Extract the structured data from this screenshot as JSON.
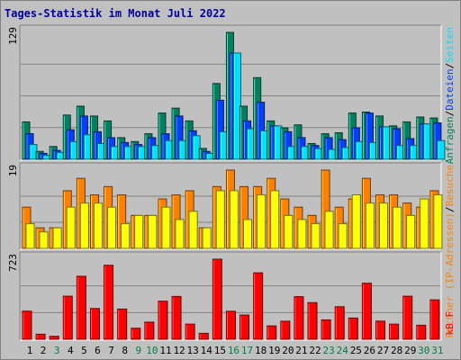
{
  "title": "Tages-Statistik im Monat Juli 2022",
  "colors": {
    "background": "#c0c0c0",
    "title": "#0000a0",
    "hits": "#008060",
    "files": "#0040ff",
    "pages": "#00e0ff",
    "visits": "#ff8000",
    "sites": "#ffff00",
    "kbytes": "#ff0000",
    "weekday_label": "#000000",
    "weekend_label": "#008040",
    "grid": "#808080"
  },
  "chart_data": [
    {
      "type": "bar",
      "panel": "top",
      "ymax_label": "129",
      "ylim": [
        0,
        129
      ],
      "categories": [
        "1",
        "2",
        "3",
        "4",
        "5",
        "6",
        "7",
        "8",
        "9",
        "10",
        "11",
        "12",
        "13",
        "14",
        "15",
        "16",
        "17",
        "18",
        "19",
        "20",
        "21",
        "22",
        "23",
        "24",
        "25",
        "26",
        "27",
        "28",
        "29",
        "30",
        "31"
      ],
      "right_labels": [
        "Anfragen",
        "/",
        "Dateien",
        "/",
        "Seiten"
      ],
      "series": [
        {
          "name": "Anfragen",
          "color": "#008060",
          "values": [
            38,
            8,
            13,
            45,
            54,
            44,
            39,
            22,
            18,
            26,
            47,
            52,
            39,
            11,
            77,
            129,
            54,
            83,
            39,
            32,
            35,
            16,
            26,
            27,
            47,
            48,
            44,
            34,
            38,
            43,
            42
          ]
        },
        {
          "name": "Dateien",
          "color": "#0040ff",
          "values": [
            26,
            6,
            9,
            30,
            44,
            28,
            22,
            17,
            15,
            22,
            26,
            44,
            29,
            8,
            60,
            108,
            39,
            58,
            34,
            28,
            22,
            14,
            22,
            20,
            32,
            47,
            33,
            31,
            21,
            36,
            37
          ]
        },
        {
          "name": "Seiten",
          "color": "#00e0ff",
          "values": [
            15,
            4,
            7,
            18,
            25,
            16,
            13,
            13,
            13,
            14,
            19,
            19,
            24,
            6,
            28,
            108,
            31,
            29,
            34,
            13,
            13,
            11,
            10,
            12,
            18,
            17,
            33,
            14,
            14,
            36,
            19
          ]
        }
      ]
    },
    {
      "type": "bar",
      "panel": "middle",
      "ymax_label": "19",
      "ylim": [
        0,
        19
      ],
      "categories": [
        "1",
        "2",
        "3",
        "4",
        "5",
        "6",
        "7",
        "8",
        "9",
        "10",
        "11",
        "12",
        "13",
        "14",
        "15",
        "16",
        "17",
        "18",
        "19",
        "20",
        "21",
        "22",
        "23",
        "24",
        "25",
        "26",
        "27",
        "28",
        "29",
        "30",
        "31"
      ],
      "right_labels": [
        "Rechner (IP-Adressen)",
        "/",
        "Besuche"
      ],
      "series": [
        {
          "name": "Besuche",
          "color": "#ff8000",
          "values": [
            10,
            5,
            5,
            14,
            17,
            13,
            15,
            13,
            8,
            8,
            12,
            13,
            14,
            5,
            15,
            19,
            15,
            15,
            17,
            12,
            10,
            8,
            19,
            10,
            12,
            17,
            13,
            13,
            11,
            10,
            14
          ]
        },
        {
          "name": "Rechner (IP-Adressen)",
          "color": "#ffff00",
          "values": [
            6,
            4,
            5,
            10,
            11,
            11,
            10,
            6,
            8,
            8,
            10,
            7,
            9,
            5,
            14,
            14,
            7,
            13,
            14,
            8,
            7,
            6,
            9,
            6,
            13,
            11,
            11,
            10,
            8,
            12,
            13
          ]
        }
      ]
    },
    {
      "type": "bar",
      "panel": "bottom",
      "ymax_label": "723",
      "ylim": [
        0,
        723
      ],
      "categories": [
        "1",
        "2",
        "3",
        "4",
        "5",
        "6",
        "7",
        "8",
        "9",
        "10",
        "11",
        "12",
        "13",
        "14",
        "15",
        "16",
        "17",
        "18",
        "19",
        "20",
        "21",
        "22",
        "23",
        "24",
        "25",
        "26",
        "27",
        "28",
        "29",
        "30",
        "31"
      ],
      "right_labels": [
        "kB F"
      ],
      "series": [
        {
          "name": "kB F",
          "color": "#ff0000",
          "values": [
            254,
            46,
            27,
            389,
            569,
            278,
            668,
            273,
            100,
            155,
            344,
            387,
            137,
            54,
            723,
            253,
            219,
            600,
            121,
            163,
            385,
            331,
            175,
            294,
            192,
            506,
            164,
            137,
            389,
            127,
            356
          ]
        }
      ]
    }
  ],
  "x_labels": [
    {
      "label": "1",
      "weekend": false
    },
    {
      "label": "2",
      "weekend": false
    },
    {
      "label": "3",
      "weekend": true
    },
    {
      "label": "4",
      "weekend": false
    },
    {
      "label": "5",
      "weekend": false
    },
    {
      "label": "6",
      "weekend": false
    },
    {
      "label": "7",
      "weekend": false
    },
    {
      "label": "8",
      "weekend": false
    },
    {
      "label": "9",
      "weekend": true
    },
    {
      "label": "10",
      "weekend": true
    },
    {
      "label": "11",
      "weekend": false
    },
    {
      "label": "12",
      "weekend": false
    },
    {
      "label": "13",
      "weekend": false
    },
    {
      "label": "14",
      "weekend": false
    },
    {
      "label": "15",
      "weekend": false
    },
    {
      "label": "16",
      "weekend": true
    },
    {
      "label": "17",
      "weekend": true
    },
    {
      "label": "18",
      "weekend": false
    },
    {
      "label": "19",
      "weekend": false
    },
    {
      "label": "20",
      "weekend": false
    },
    {
      "label": "21",
      "weekend": false
    },
    {
      "label": "22",
      "weekend": false
    },
    {
      "label": "23",
      "weekend": true
    },
    {
      "label": "24",
      "weekend": true
    },
    {
      "label": "25",
      "weekend": false
    },
    {
      "label": "26",
      "weekend": false
    },
    {
      "label": "27",
      "weekend": false
    },
    {
      "label": "28",
      "weekend": false
    },
    {
      "label": "29",
      "weekend": false
    },
    {
      "label": "30",
      "weekend": true
    },
    {
      "label": "31",
      "weekend": true
    }
  ]
}
